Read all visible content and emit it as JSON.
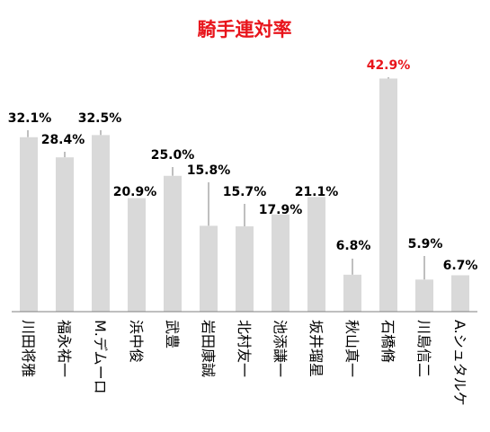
{
  "chart_data": {
    "type": "bar",
    "title": "騎手連対率",
    "categories": [
      "川田将雅",
      "福永祐一",
      "M.デムーロ",
      "浜中俊",
      "武豊",
      "岩田康誠",
      "北村友一",
      "池添謙一",
      "坂井瑠星",
      "秋山真一",
      "石橋脩",
      "川島信二",
      "A.シュタルケ"
    ],
    "values": [
      32.1,
      28.4,
      32.5,
      20.9,
      25.0,
      15.8,
      15.7,
      17.9,
      21.1,
      6.8,
      42.9,
      5.9,
      6.7
    ],
    "value_labels": [
      "32.1%",
      "28.4%",
      "32.5%",
      "20.9%",
      "25.0%",
      "15.8%",
      "15.7%",
      "17.9%",
      "21.1%",
      "6.8%",
      "42.9%",
      "5.9%",
      "6.7%"
    ],
    "highlight_index": 10,
    "xlabel": "",
    "ylabel": "",
    "ylim": [
      0,
      45
    ],
    "grid": false,
    "legend": "none",
    "colors": {
      "bar": "#d9d9d9",
      "title": "#e8141b",
      "label": "#000000",
      "highlight_label": "#e8141b",
      "leader": "#7f7f7f",
      "axis": "#7f7f7f"
    }
  }
}
